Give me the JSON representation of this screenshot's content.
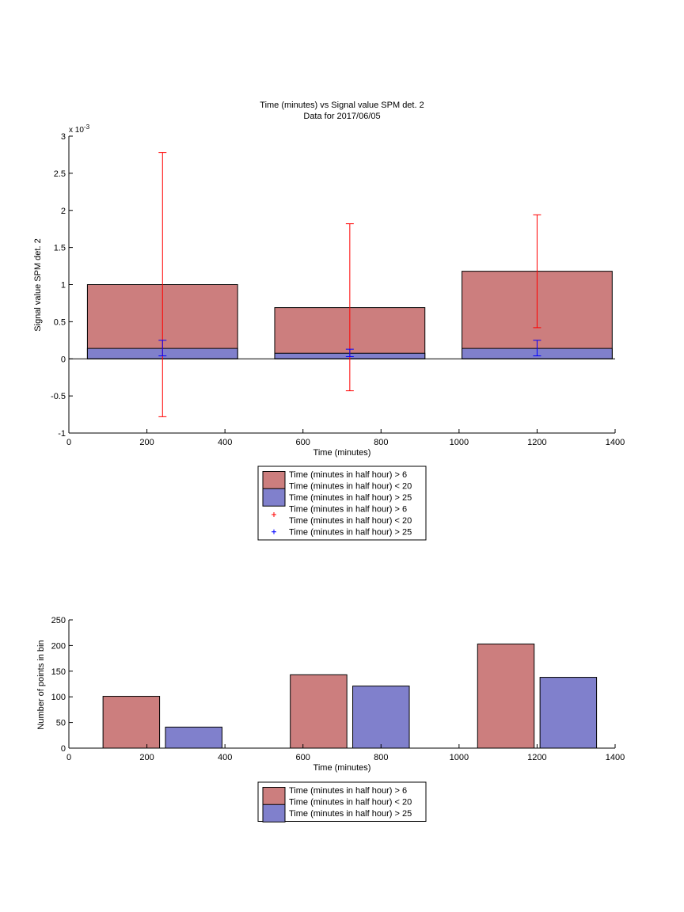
{
  "chart_data": [
    {
      "type": "bar",
      "title": "Time (minutes) vs Signal value SPM det. 2",
      "subtitle": "Data for 2017/06/05",
      "xlabel": "Time (minutes)",
      "ylabel": "Signal value SPM det. 2",
      "y_exponent_label": "x 10",
      "y_exponent_power": "-3",
      "xlim": [
        0,
        1400
      ],
      "ylim": [
        -1,
        3
      ],
      "xticks": [
        "0",
        "200",
        "400",
        "600",
        "800",
        "1000",
        "1200",
        "1400"
      ],
      "yticks": [
        "-1",
        "-0.5",
        "0",
        "0.5",
        "1",
        "1.5",
        "2",
        "2.5",
        "3"
      ],
      "categories": [
        240,
        720,
        1200
      ],
      "bar_width": 385,
      "series": [
        {
          "name": "Time (minutes in half hour) > 6\nTime (minutes in half hour) < 20",
          "values": [
            1.0,
            0.69,
            1.18
          ],
          "color": "#cc7e7e",
          "err_low": [
            -0.78,
            -0.43,
            0.42
          ],
          "err_high": [
            2.78,
            1.82,
            1.94
          ],
          "err_color": "#ff0000"
        },
        {
          "name": "Time (minutes in half hour) > 25",
          "values": [
            0.14,
            0.075,
            0.14
          ],
          "color": "#8080cc",
          "err_low": [
            0.04,
            0.03,
            0.04
          ],
          "err_high": [
            0.25,
            0.13,
            0.25
          ],
          "err_color": "#0000ff"
        }
      ],
      "legend": {
        "placement": "below",
        "entries": [
          {
            "kind": "patch",
            "color": "#cc7e7e",
            "lines": [
              "Time (minutes in half hour) > 6",
              "Time (minutes in half hour) < 20"
            ]
          },
          {
            "kind": "patch",
            "color": "#8080cc",
            "lines": [
              "Time (minutes in half hour) > 25"
            ]
          },
          {
            "kind": "marker",
            "color": "#ff0000",
            "lines": [
              "Time (minutes in half hour) > 6",
              "Time (minutes in half hour) < 20"
            ]
          },
          {
            "kind": "marker",
            "color": "#0000ff",
            "lines": [
              "Time (minutes in half hour) > 25"
            ]
          }
        ]
      }
    },
    {
      "type": "bar",
      "title": "",
      "xlabel": "Time (minutes)",
      "ylabel": "Number of points in bin",
      "xlim": [
        0,
        1400
      ],
      "ylim": [
        0,
        250
      ],
      "xticks": [
        "0",
        "200",
        "400",
        "600",
        "800",
        "1000",
        "1200",
        "1400"
      ],
      "yticks": [
        "0",
        "50",
        "100",
        "150",
        "200",
        "250"
      ],
      "categories": [
        240,
        720,
        1200
      ],
      "group_offset": 80,
      "bar_width": 145,
      "series": [
        {
          "name": "Time (minutes in half hour) > 6\nTime (minutes in half hour) < 20",
          "values": [
            101,
            143,
            203
          ],
          "color": "#cc7e7e"
        },
        {
          "name": "Time (minutes in half hour) > 25",
          "values": [
            41,
            121,
            138
          ],
          "color": "#8080cc"
        }
      ],
      "legend": {
        "placement": "below",
        "entries": [
          {
            "kind": "patch",
            "color": "#cc7e7e",
            "lines": [
              "Time (minutes in half hour) > 6",
              "Time (minutes in half hour) < 20"
            ]
          },
          {
            "kind": "patch",
            "color": "#8080cc",
            "lines": [
              "Time (minutes in half hour) > 25"
            ]
          }
        ]
      }
    }
  ]
}
